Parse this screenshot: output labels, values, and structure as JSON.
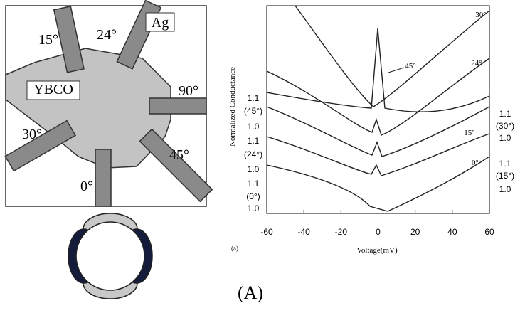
{
  "diagram": {
    "labels": [
      "15°",
      "24°",
      "Ag",
      "YBCO",
      "90°",
      "30°",
      "45°",
      "0°"
    ]
  },
  "graph": {
    "panel": "(a)",
    "xlabel": "Voltage(mV)",
    "ylabel": "Normalized Conductance",
    "xlim": [
      -60,
      60
    ],
    "xticks": [
      -60,
      -40,
      -20,
      0,
      20,
      40,
      60
    ],
    "curve_labels": [
      "30°",
      "45°",
      "24°",
      "15°",
      "0°"
    ],
    "left_labels": [
      "1.1",
      "(45°)",
      "1.0",
      "1.1",
      "(24°)",
      "1.0",
      "1.1",
      "(0°)",
      "1.0"
    ],
    "right_labels": [
      "1.1",
      "(30°)",
      "1.0",
      "1.1",
      "(15°)",
      "1.0"
    ]
  },
  "caption": "(A)"
}
